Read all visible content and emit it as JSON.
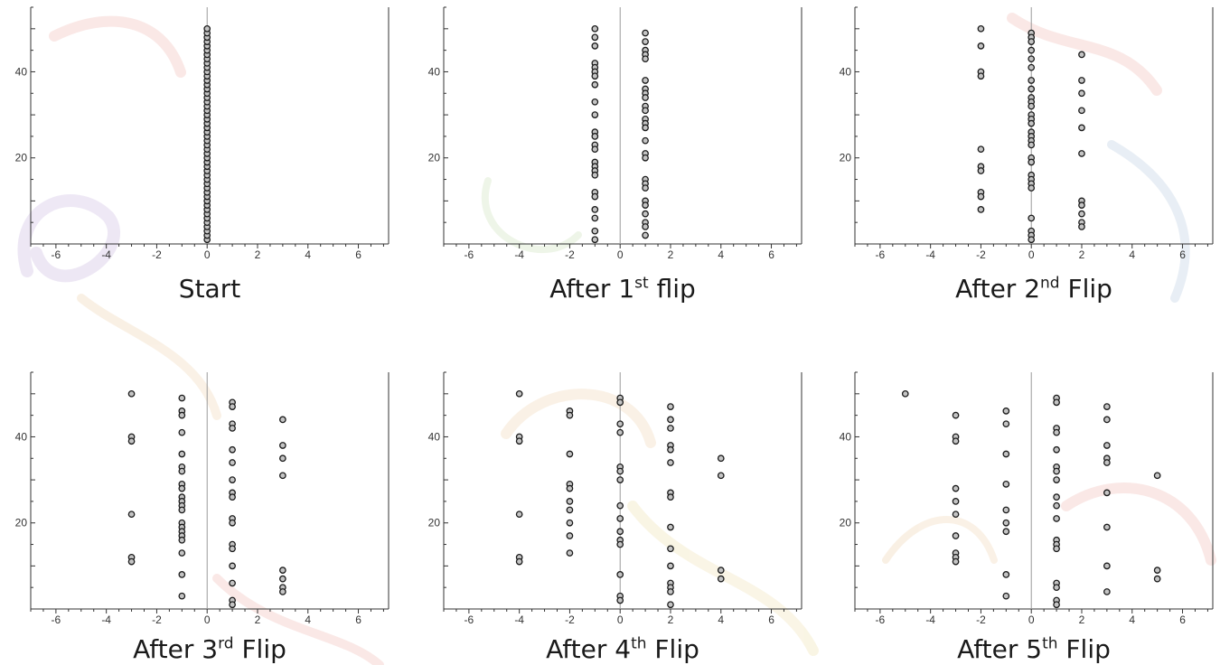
{
  "chart_data": [
    {
      "type": "scatter",
      "title": "Start",
      "xlim": [
        -7,
        7.2
      ],
      "ylim": [
        0,
        55
      ],
      "xticks": [
        -6,
        -4,
        -2,
        0,
        2,
        4,
        6
      ],
      "yticks": [
        20,
        40
      ],
      "grid": false,
      "points": [
        [
          0,
          1
        ],
        [
          0,
          2
        ],
        [
          0,
          3
        ],
        [
          0,
          4
        ],
        [
          0,
          5
        ],
        [
          0,
          6
        ],
        [
          0,
          7
        ],
        [
          0,
          8
        ],
        [
          0,
          9
        ],
        [
          0,
          10
        ],
        [
          0,
          11
        ],
        [
          0,
          12
        ],
        [
          0,
          13
        ],
        [
          0,
          14
        ],
        [
          0,
          15
        ],
        [
          0,
          16
        ],
        [
          0,
          17
        ],
        [
          0,
          18
        ],
        [
          0,
          19
        ],
        [
          0,
          20
        ],
        [
          0,
          21
        ],
        [
          0,
          22
        ],
        [
          0,
          23
        ],
        [
          0,
          24
        ],
        [
          0,
          25
        ],
        [
          0,
          26
        ],
        [
          0,
          27
        ],
        [
          0,
          28
        ],
        [
          0,
          29
        ],
        [
          0,
          30
        ],
        [
          0,
          31
        ],
        [
          0,
          32
        ],
        [
          0,
          33
        ],
        [
          0,
          34
        ],
        [
          0,
          35
        ],
        [
          0,
          36
        ],
        [
          0,
          37
        ],
        [
          0,
          38
        ],
        [
          0,
          39
        ],
        [
          0,
          40
        ],
        [
          0,
          41
        ],
        [
          0,
          42
        ],
        [
          0,
          43
        ],
        [
          0,
          44
        ],
        [
          0,
          45
        ],
        [
          0,
          46
        ],
        [
          0,
          47
        ],
        [
          0,
          48
        ],
        [
          0,
          49
        ],
        [
          0,
          50
        ]
      ]
    },
    {
      "type": "scatter",
      "title": "After 1",
      "title_sup": "st",
      "title_suffix": " flip",
      "xlim": [
        -7,
        7.2
      ],
      "ylim": [
        0,
        55
      ],
      "xticks": [
        -6,
        -4,
        -2,
        0,
        2,
        4,
        6
      ],
      "yticks": [
        20,
        40
      ],
      "grid": false,
      "points": [
        [
          -1,
          50
        ],
        [
          -1,
          48
        ],
        [
          -1,
          46
        ],
        [
          -1,
          42
        ],
        [
          -1,
          41
        ],
        [
          -1,
          40
        ],
        [
          -1,
          39
        ],
        [
          -1,
          37
        ],
        [
          -1,
          33
        ],
        [
          -1,
          30
        ],
        [
          -1,
          26
        ],
        [
          -1,
          25
        ],
        [
          -1,
          23
        ],
        [
          -1,
          22
        ],
        [
          -1,
          19
        ],
        [
          -1,
          18
        ],
        [
          -1,
          17
        ],
        [
          -1,
          16
        ],
        [
          -1,
          12
        ],
        [
          -1,
          11
        ],
        [
          -1,
          8
        ],
        [
          -1,
          6
        ],
        [
          -1,
          3
        ],
        [
          -1,
          1
        ],
        [
          1,
          49
        ],
        [
          1,
          47
        ],
        [
          1,
          45
        ],
        [
          1,
          44
        ],
        [
          1,
          43
        ],
        [
          1,
          38
        ],
        [
          1,
          36
        ],
        [
          1,
          35
        ],
        [
          1,
          34
        ],
        [
          1,
          32
        ],
        [
          1,
          31
        ],
        [
          1,
          29
        ],
        [
          1,
          28
        ],
        [
          1,
          27
        ],
        [
          1,
          24
        ],
        [
          1,
          21
        ],
        [
          1,
          20
        ],
        [
          1,
          15
        ],
        [
          1,
          14
        ],
        [
          1,
          13
        ],
        [
          1,
          10
        ],
        [
          1,
          9
        ],
        [
          1,
          7
        ],
        [
          1,
          5
        ],
        [
          1,
          4
        ],
        [
          1,
          2
        ]
      ]
    },
    {
      "type": "scatter",
      "title": "After 2",
      "title_sup": "nd",
      "title_suffix": " Flip",
      "xlim": [
        -7,
        7.2
      ],
      "ylim": [
        0,
        55
      ],
      "xticks": [
        -6,
        -4,
        -2,
        0,
        2,
        4,
        6
      ],
      "yticks": [
        20,
        40
      ],
      "grid": false,
      "points": [
        [
          -2,
          50
        ],
        [
          -2,
          46
        ],
        [
          -2,
          40
        ],
        [
          -2,
          39
        ],
        [
          -2,
          22
        ],
        [
          -2,
          18
        ],
        [
          -2,
          17
        ],
        [
          -2,
          12
        ],
        [
          -2,
          11
        ],
        [
          -2,
          8
        ],
        [
          0,
          49
        ],
        [
          0,
          48
        ],
        [
          0,
          47
        ],
        [
          0,
          45
        ],
        [
          0,
          43
        ],
        [
          0,
          41
        ],
        [
          0,
          38
        ],
        [
          0,
          36
        ],
        [
          0,
          34
        ],
        [
          0,
          33
        ],
        [
          0,
          32
        ],
        [
          0,
          30
        ],
        [
          0,
          29
        ],
        [
          0,
          28
        ],
        [
          0,
          26
        ],
        [
          0,
          25
        ],
        [
          0,
          24
        ],
        [
          0,
          23
        ],
        [
          0,
          20
        ],
        [
          0,
          19
        ],
        [
          0,
          16
        ],
        [
          0,
          15
        ],
        [
          0,
          14
        ],
        [
          0,
          13
        ],
        [
          0,
          6
        ],
        [
          0,
          3
        ],
        [
          0,
          2
        ],
        [
          0,
          1
        ],
        [
          2,
          44
        ],
        [
          2,
          38
        ],
        [
          2,
          35
        ],
        [
          2,
          31
        ],
        [
          2,
          27
        ],
        [
          2,
          21
        ],
        [
          2,
          10
        ],
        [
          2,
          9
        ],
        [
          2,
          7
        ],
        [
          2,
          5
        ],
        [
          2,
          4
        ]
      ]
    },
    {
      "type": "scatter",
      "title": "After 3",
      "title_sup": "rd",
      "title_suffix": " Flip",
      "xlim": [
        -7,
        7.2
      ],
      "ylim": [
        0,
        55
      ],
      "xticks": [
        -6,
        -4,
        -2,
        0,
        2,
        4,
        6
      ],
      "yticks": [
        20,
        40
      ],
      "grid": false,
      "points": [
        [
          -3,
          50
        ],
        [
          -3,
          40
        ],
        [
          -3,
          39
        ],
        [
          -3,
          22
        ],
        [
          -3,
          12
        ],
        [
          -3,
          11
        ],
        [
          -1,
          49
        ],
        [
          -1,
          46
        ],
        [
          -1,
          45
        ],
        [
          -1,
          41
        ],
        [
          -1,
          36
        ],
        [
          -1,
          33
        ],
        [
          -1,
          32
        ],
        [
          -1,
          29
        ],
        [
          -1,
          28
        ],
        [
          -1,
          26
        ],
        [
          -1,
          25
        ],
        [
          -1,
          24
        ],
        [
          -1,
          23
        ],
        [
          -1,
          20
        ],
        [
          -1,
          19
        ],
        [
          -1,
          18
        ],
        [
          -1,
          17
        ],
        [
          -1,
          16
        ],
        [
          -1,
          13
        ],
        [
          -1,
          8
        ],
        [
          -1,
          3
        ],
        [
          1,
          48
        ],
        [
          1,
          47
        ],
        [
          1,
          43
        ],
        [
          1,
          42
        ],
        [
          1,
          37
        ],
        [
          1,
          34
        ],
        [
          1,
          30
        ],
        [
          1,
          27
        ],
        [
          1,
          26
        ],
        [
          1,
          21
        ],
        [
          1,
          20
        ],
        [
          1,
          15
        ],
        [
          1,
          14
        ],
        [
          1,
          10
        ],
        [
          1,
          6
        ],
        [
          1,
          2
        ],
        [
          1,
          1
        ],
        [
          3,
          44
        ],
        [
          3,
          38
        ],
        [
          3,
          35
        ],
        [
          3,
          31
        ],
        [
          3,
          9
        ],
        [
          3,
          7
        ],
        [
          3,
          5
        ],
        [
          3,
          4
        ]
      ]
    },
    {
      "type": "scatter",
      "title": "After 4",
      "title_sup": "th",
      "title_suffix": " Flip",
      "xlim": [
        -7,
        7.2
      ],
      "ylim": [
        0,
        55
      ],
      "xticks": [
        -6,
        -4,
        -2,
        0,
        2,
        4,
        6
      ],
      "yticks": [
        20,
        40
      ],
      "grid": false,
      "points": [
        [
          -4,
          50
        ],
        [
          -4,
          40
        ],
        [
          -4,
          39
        ],
        [
          -4,
          22
        ],
        [
          -4,
          12
        ],
        [
          -4,
          11
        ],
        [
          -2,
          46
        ],
        [
          -2,
          45
        ],
        [
          -2,
          36
        ],
        [
          -2,
          29
        ],
        [
          -2,
          28
        ],
        [
          -2,
          25
        ],
        [
          -2,
          23
        ],
        [
          -2,
          20
        ],
        [
          -2,
          17
        ],
        [
          -2,
          13
        ],
        [
          0,
          49
        ],
        [
          0,
          48
        ],
        [
          0,
          43
        ],
        [
          0,
          41
        ],
        [
          0,
          33
        ],
        [
          0,
          32
        ],
        [
          0,
          30
        ],
        [
          0,
          24
        ],
        [
          0,
          21
        ],
        [
          0,
          18
        ],
        [
          0,
          16
        ],
        [
          0,
          15
        ],
        [
          0,
          8
        ],
        [
          0,
          3
        ],
        [
          0,
          2
        ],
        [
          2,
          47
        ],
        [
          2,
          44
        ],
        [
          2,
          42
        ],
        [
          2,
          38
        ],
        [
          2,
          37
        ],
        [
          2,
          34
        ],
        [
          2,
          27
        ],
        [
          2,
          26
        ],
        [
          2,
          19
        ],
        [
          2,
          14
        ],
        [
          2,
          10
        ],
        [
          2,
          6
        ],
        [
          2,
          5
        ],
        [
          2,
          4
        ],
        [
          2,
          1
        ],
        [
          4,
          35
        ],
        [
          4,
          31
        ],
        [
          4,
          9
        ],
        [
          4,
          7
        ]
      ]
    },
    {
      "type": "scatter",
      "title": "After 5",
      "title_sup": "th",
      "title_suffix": " Flip",
      "xlim": [
        -7,
        7.2
      ],
      "ylim": [
        0,
        55
      ],
      "xticks": [
        -6,
        -4,
        -2,
        0,
        2,
        4,
        6
      ],
      "yticks": [
        20,
        40
      ],
      "grid": false,
      "points": [
        [
          -5,
          50
        ],
        [
          -3,
          45
        ],
        [
          -3,
          40
        ],
        [
          -3,
          39
        ],
        [
          -3,
          28
        ],
        [
          -3,
          25
        ],
        [
          -3,
          22
        ],
        [
          -3,
          17
        ],
        [
          -3,
          13
        ],
        [
          -3,
          12
        ],
        [
          -3,
          11
        ],
        [
          -1,
          46
        ],
        [
          -1,
          43
        ],
        [
          -1,
          36
        ],
        [
          -1,
          29
        ],
        [
          -1,
          23
        ],
        [
          -1,
          20
        ],
        [
          -1,
          18
        ],
        [
          -1,
          8
        ],
        [
          -1,
          3
        ],
        [
          1,
          49
        ],
        [
          1,
          48
        ],
        [
          1,
          42
        ],
        [
          1,
          41
        ],
        [
          1,
          37
        ],
        [
          1,
          33
        ],
        [
          1,
          32
        ],
        [
          1,
          30
        ],
        [
          1,
          26
        ],
        [
          1,
          24
        ],
        [
          1,
          21
        ],
        [
          1,
          16
        ],
        [
          1,
          15
        ],
        [
          1,
          14
        ],
        [
          1,
          6
        ],
        [
          1,
          5
        ],
        [
          1,
          2
        ],
        [
          1,
          1
        ],
        [
          3,
          47
        ],
        [
          3,
          44
        ],
        [
          3,
          38
        ],
        [
          3,
          35
        ],
        [
          3,
          34
        ],
        [
          3,
          27
        ],
        [
          3,
          19
        ],
        [
          3,
          10
        ],
        [
          3,
          4
        ],
        [
          5,
          31
        ],
        [
          5,
          9
        ],
        [
          5,
          7
        ]
      ]
    }
  ]
}
